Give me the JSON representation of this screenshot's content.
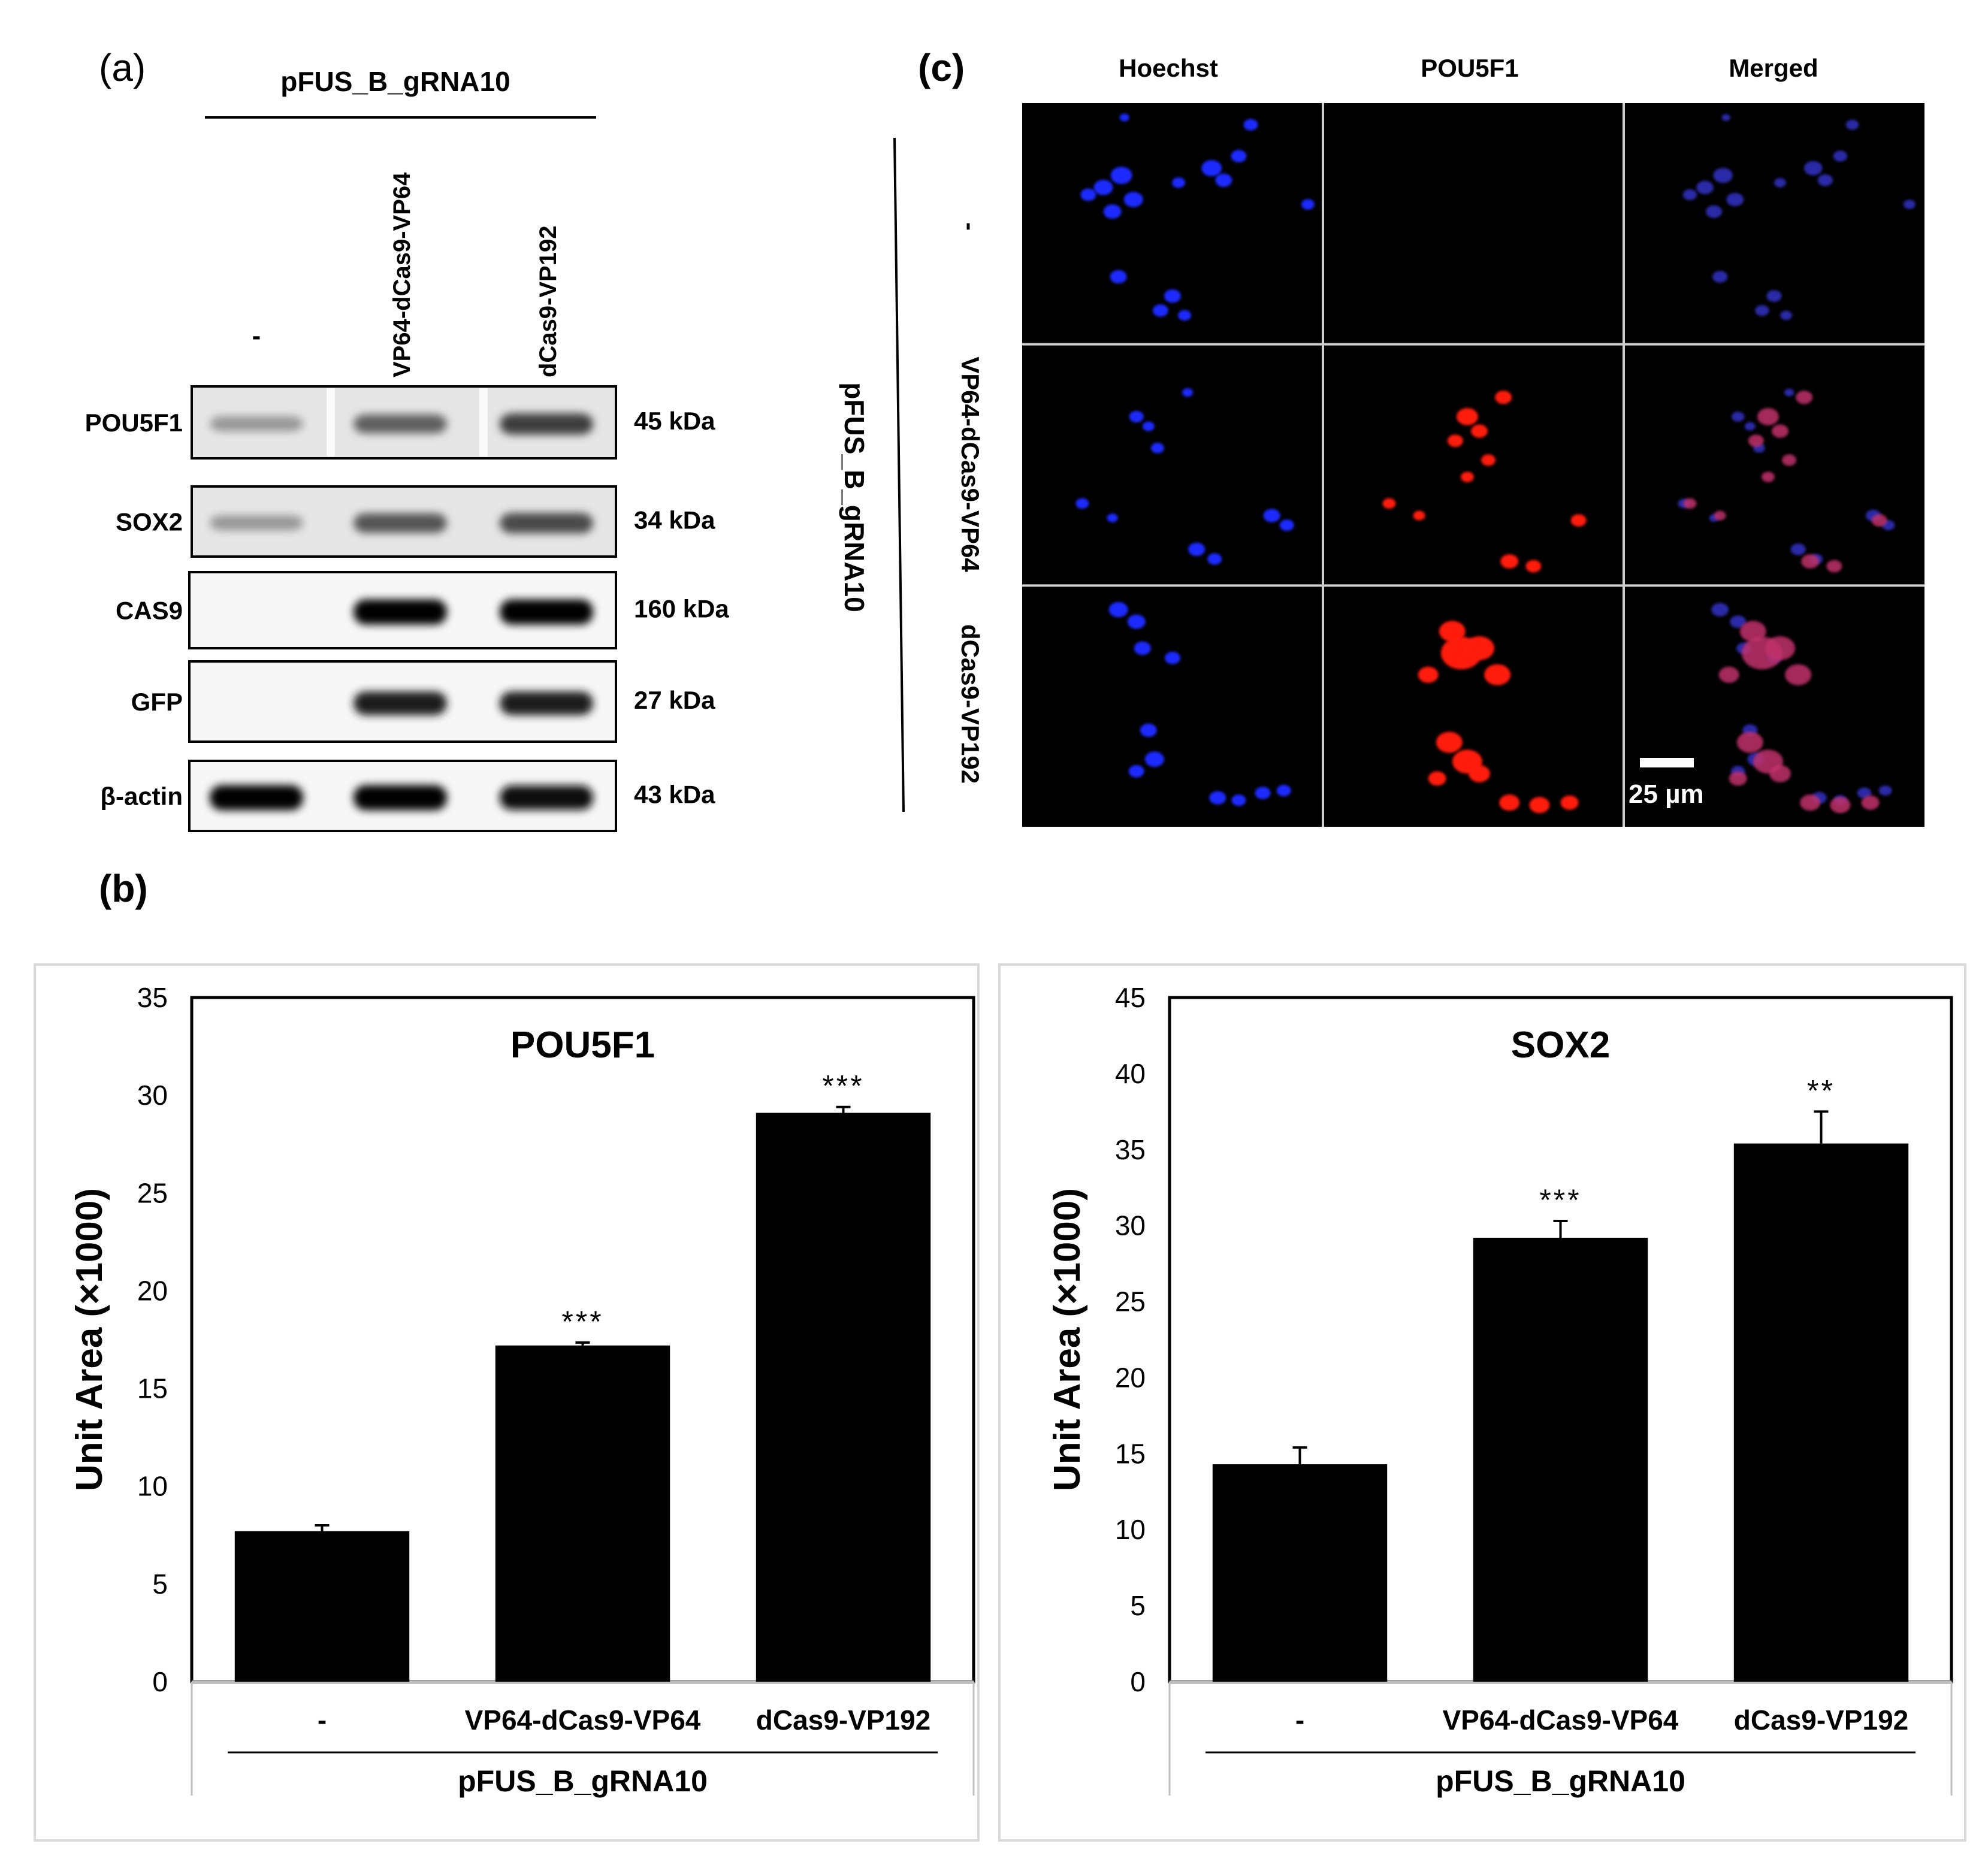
{
  "panel_a": {
    "label": "(a)",
    "group_label": "pFUS_B_gRNA10",
    "lane_labels": [
      "-",
      "VP64-dCas9-VP64",
      "dCas9-VP192"
    ],
    "blots": [
      {
        "protein": "POU5F1",
        "mw": "45 kDa",
        "intensity": [
          0.35,
          0.6,
          0.75
        ]
      },
      {
        "protein": "SOX2",
        "mw": "34 kDa",
        "intensity": [
          0.35,
          0.65,
          0.7
        ]
      },
      {
        "protein": "CAS9",
        "mw": "160 kDa",
        "intensity": [
          0.0,
          1.0,
          1.0
        ]
      },
      {
        "protein": "GFP",
        "mw": "27 kDa",
        "intensity": [
          0.0,
          0.9,
          0.9
        ]
      },
      {
        "protein": "β-actin",
        "mw": "43 kDa",
        "intensity": [
          1.0,
          1.0,
          0.95
        ]
      }
    ]
  },
  "panel_b": {
    "label": "(b)"
  },
  "panel_c": {
    "label": "(c)",
    "column_labels": [
      "Hoechst",
      "POU5F1",
      "Merged"
    ],
    "row_labels": [
      "-",
      "VP64-dCas9-VP64",
      "dCas9-VP192"
    ],
    "group_label": "pFUS_B_gRNA10",
    "scale_bar": "25 µm"
  },
  "chart_data": [
    {
      "type": "bar",
      "title": "POU5F1",
      "ylabel": "Unit Area (×1000)",
      "xgroup_label": "pFUS_B_gRNA10",
      "categories": [
        "-",
        "VP64-dCas9-VP64",
        "dCas9-VP192"
      ],
      "values": [
        7.7,
        17.2,
        29.1
      ],
      "errors": [
        0.3,
        0.15,
        0.3
      ],
      "significance": [
        "",
        "***",
        "***"
      ],
      "ylim": [
        0,
        35
      ],
      "yticks": [
        0,
        5,
        10,
        15,
        20,
        25,
        30,
        35
      ],
      "grid": false,
      "bar_color": "#000000"
    },
    {
      "type": "bar",
      "title": "SOX2",
      "ylabel": "Unit Area (×1000)",
      "xgroup_label": "pFUS_B_gRNA10",
      "categories": [
        "-",
        "VP64-dCas9-VP64",
        "dCas9-VP192"
      ],
      "values": [
        14.3,
        29.2,
        35.4
      ],
      "errors": [
        1.1,
        1.1,
        2.1
      ],
      "significance": [
        "",
        "***",
        "**"
      ],
      "ylim": [
        0,
        45
      ],
      "yticks": [
        0,
        5,
        10,
        15,
        20,
        25,
        30,
        35,
        40,
        45
      ],
      "grid": false,
      "bar_color": "#000000"
    }
  ]
}
